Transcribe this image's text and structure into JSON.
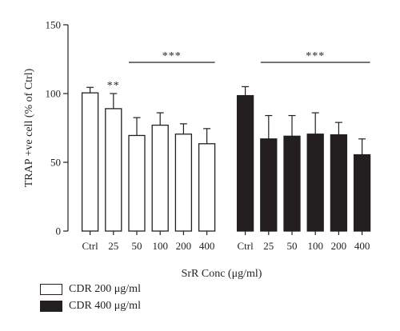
{
  "chart_data": {
    "type": "bar",
    "xlabel": "SrR Conc (μg/ml)",
    "ylabel": "TRAP +ve cell (% of Ctrl)",
    "ylim": [
      0,
      150
    ],
    "yticks": [
      0,
      50,
      100,
      150
    ],
    "categories": [
      "Ctrl",
      "25",
      "50",
      "100",
      "200",
      "400"
    ],
    "series": [
      {
        "name": "CDR 200 μg/ml",
        "color": "#ffffff",
        "values": [
          100.5,
          89,
          69.5,
          77,
          70.5,
          63.5
        ],
        "error": [
          4,
          11,
          13,
          9,
          7.5,
          11
        ]
      },
      {
        "name": "CDR 400 μg/ml",
        "color": "#231f20",
        "values": [
          98.5,
          67,
          69,
          70.5,
          70,
          55.5
        ],
        "error": [
          6.5,
          17,
          15,
          15.5,
          9,
          11.5
        ]
      }
    ],
    "annotations": [
      {
        "series": 0,
        "text": "**",
        "span": [
          1,
          1
        ]
      },
      {
        "series": 0,
        "text": "***",
        "span": [
          2,
          5
        ]
      },
      {
        "series": 1,
        "text": "***",
        "span": [
          1,
          5
        ]
      }
    ],
    "legend_position": "bottom-left",
    "grid": false
  }
}
